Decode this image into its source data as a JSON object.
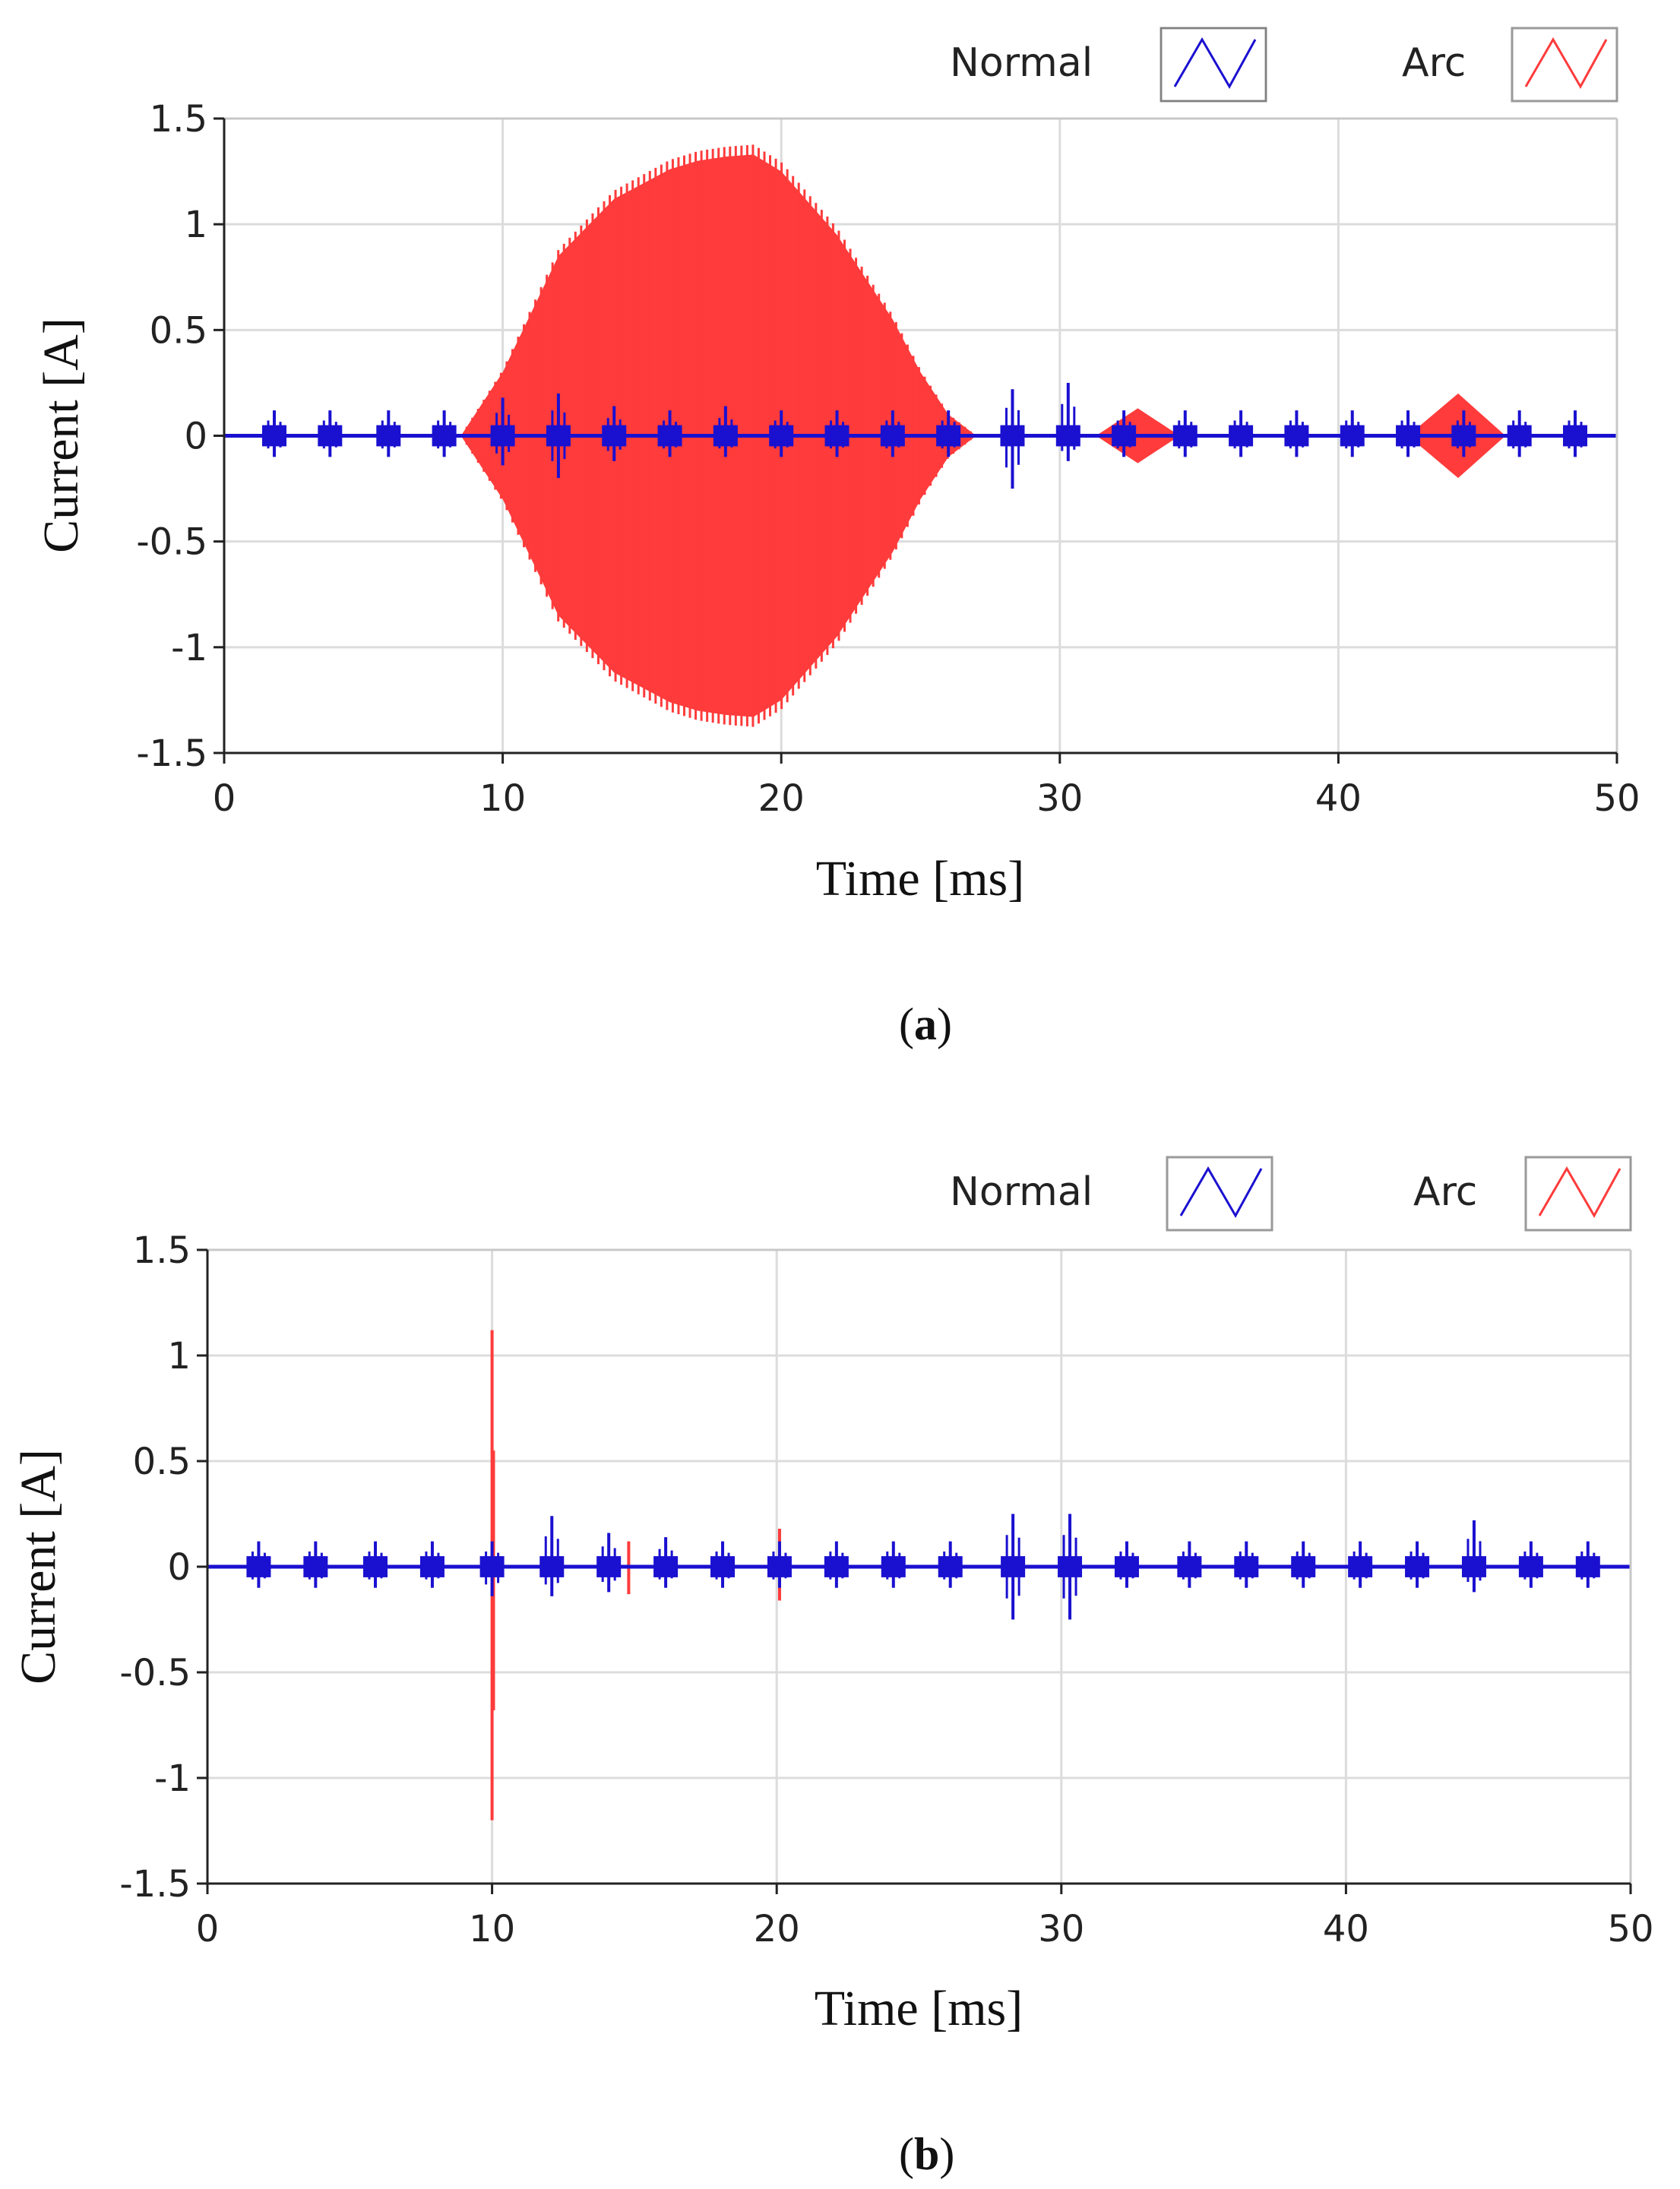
{
  "chart_data": [
    {
      "type": "line",
      "panel_label": "a",
      "xlabel": "Time [ms]",
      "ylabel": "Current [A]",
      "xlim": [
        0,
        50
      ],
      "ylim": [
        -1.5,
        1.5
      ],
      "x_ticks": [
        "0",
        "10",
        "20",
        "30",
        "40",
        "50"
      ],
      "y_ticks": [
        "1.5",
        "1",
        "0.5",
        "0",
        "-0.5",
        "-1",
        "-1.5"
      ],
      "grid": true,
      "legend": {
        "position": "top-right"
      },
      "series": [
        {
          "name": "Normal",
          "color": "#1a10d0",
          "kind": "spikes",
          "spike_times": [
            1.8,
            3.8,
            5.9,
            7.9,
            10.0,
            12.0,
            14.0,
            16.0,
            18.0,
            20.0,
            22.0,
            24.0,
            26.0,
            28.3,
            30.3,
            32.3,
            34.5,
            36.5,
            38.5,
            40.5,
            42.5,
            44.5,
            46.5,
            48.5
          ],
          "spike_peaks": [
            0.12,
            0.12,
            0.12,
            0.12,
            0.18,
            0.2,
            0.14,
            0.12,
            0.14,
            0.12,
            0.12,
            0.12,
            0.12,
            0.22,
            0.25,
            0.12,
            0.12,
            0.12,
            0.12,
            0.12,
            0.12,
            0.12,
            0.12,
            0.12
          ],
          "spike_troughs": [
            -0.1,
            -0.1,
            -0.1,
            -0.1,
            -0.14,
            -0.2,
            -0.12,
            -0.1,
            -0.1,
            -0.1,
            -0.1,
            -0.1,
            -0.1,
            -0.25,
            -0.12,
            -0.1,
            -0.1,
            -0.1,
            -0.1,
            -0.1,
            -0.1,
            -0.1,
            -0.1,
            -0.1
          ]
        },
        {
          "name": "Arc",
          "color": "#ff3b3b",
          "kind": "envelope",
          "envelope_x": [
            8.5,
            10,
            12,
            14,
            16,
            17,
            18,
            19,
            20,
            22,
            24,
            25,
            26,
            27
          ],
          "envelope_y": [
            0.0,
            0.3,
            0.85,
            1.12,
            1.26,
            1.3,
            1.32,
            1.33,
            1.25,
            0.95,
            0.55,
            0.3,
            0.1,
            0.0
          ],
          "bursts": [
            {
              "x": [
                31.3,
                32.8,
                34.3
              ],
              "y": [
                0.0,
                0.13,
                0.0
              ]
            },
            {
              "x": [
                42.5,
                44.3,
                46.0
              ],
              "y": [
                0.0,
                0.2,
                0.0
              ]
            }
          ]
        }
      ]
    },
    {
      "type": "line",
      "panel_label": "b",
      "xlabel": "Time [ms]",
      "ylabel": "Current [A]",
      "xlim": [
        0,
        50
      ],
      "ylim": [
        -1.5,
        1.5
      ],
      "x_ticks": [
        "0",
        "10",
        "20",
        "30",
        "40",
        "50"
      ],
      "y_ticks": [
        "1.5",
        "1",
        "0.5",
        "0",
        "-0.5",
        "-1",
        "-1.5"
      ],
      "grid": true,
      "legend": {
        "position": "top-right"
      },
      "series": [
        {
          "name": "Normal",
          "color": "#1a10d0",
          "kind": "spikes",
          "spike_times": [
            1.8,
            3.8,
            5.9,
            7.9,
            10.0,
            12.1,
            14.1,
            16.1,
            18.1,
            20.1,
            22.1,
            24.1,
            26.1,
            28.3,
            30.3,
            32.3,
            34.5,
            36.5,
            38.5,
            40.5,
            42.5,
            44.5,
            46.5,
            48.5
          ],
          "spike_peaks": [
            0.12,
            0.12,
            0.12,
            0.12,
            0.12,
            0.24,
            0.16,
            0.14,
            0.12,
            0.12,
            0.12,
            0.12,
            0.12,
            0.25,
            0.25,
            0.12,
            0.12,
            0.12,
            0.12,
            0.12,
            0.12,
            0.22,
            0.12,
            0.12
          ],
          "spike_troughs": [
            -0.1,
            -0.1,
            -0.1,
            -0.1,
            -0.14,
            -0.14,
            -0.12,
            -0.1,
            -0.1,
            -0.1,
            -0.1,
            -0.1,
            -0.1,
            -0.25,
            -0.25,
            -0.1,
            -0.1,
            -0.1,
            -0.1,
            -0.1,
            -0.1,
            -0.12,
            -0.1,
            -0.1
          ]
        },
        {
          "name": "Arc",
          "color": "#ff3b3b",
          "kind": "spikes",
          "spike_times": [
            10.0,
            10.05,
            14.8,
            20.1
          ],
          "spike_peaks": [
            1.12,
            0.55,
            0.12,
            0.18
          ],
          "spike_troughs": [
            -1.2,
            -0.68,
            -0.13,
            -0.16
          ]
        }
      ]
    }
  ]
}
